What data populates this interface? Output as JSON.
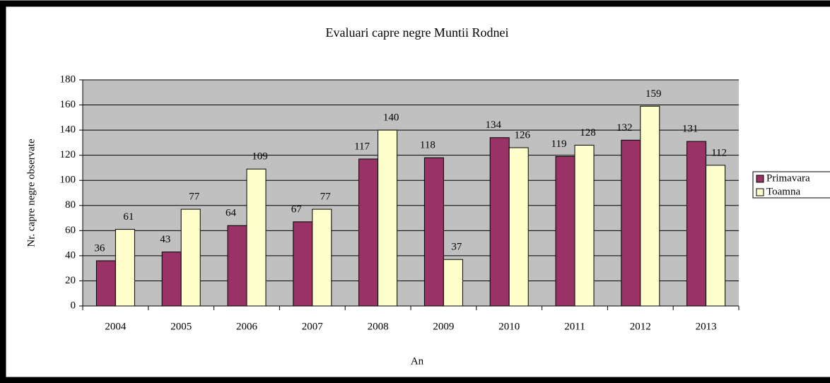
{
  "chart_data": {
    "type": "bar",
    "title": "Evaluari capre negre Muntii Rodnei",
    "x_label": "An",
    "y_label": "Nr. capre negre observate",
    "categories": [
      "2004",
      "2005",
      "2006",
      "2007",
      "2008",
      "2009",
      "2010",
      "2011",
      "2012",
      "2013"
    ],
    "series": [
      {
        "name": "Primavara",
        "color": "#993366",
        "values": [
          36,
          43,
          64,
          67,
          117,
          118,
          134,
          119,
          132,
          131
        ]
      },
      {
        "name": "Toamna",
        "color": "#ffffcc",
        "values": [
          61,
          77,
          109,
          77,
          140,
          37,
          126,
          128,
          159,
          112
        ]
      }
    ],
    "ylim": [
      0,
      180
    ],
    "yticks": [
      0,
      20,
      40,
      60,
      80,
      100,
      120,
      140,
      160,
      180
    ],
    "grid": true,
    "legend": "right"
  }
}
